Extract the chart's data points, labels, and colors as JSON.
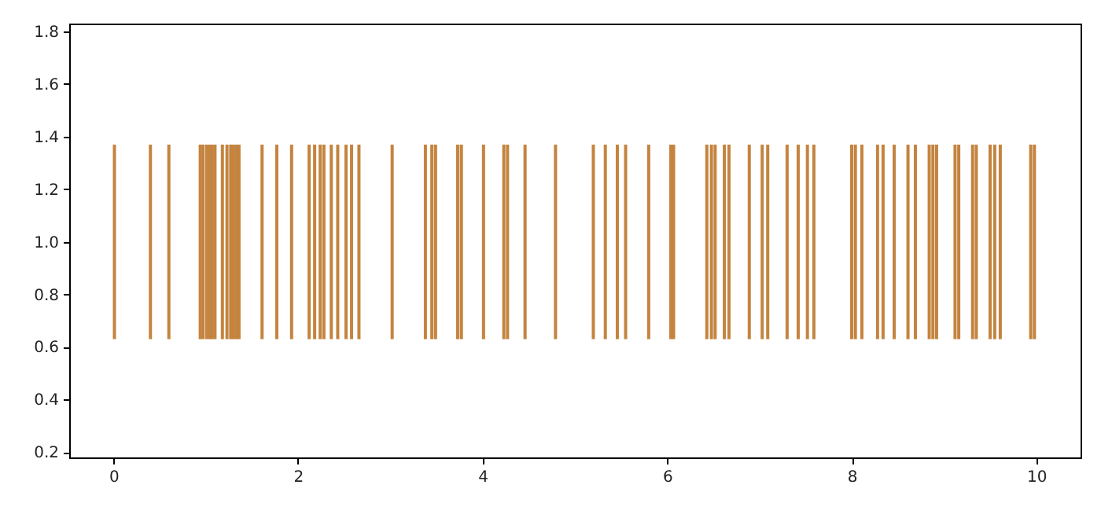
{
  "chart_data": {
    "type": "bar",
    "x": [
      0.01,
      0.4,
      0.6,
      0.94,
      0.97,
      1.01,
      1.04,
      1.07,
      1.1,
      1.18,
      1.23,
      1.27,
      1.3,
      1.33,
      1.36,
      1.61,
      1.77,
      1.93,
      2.12,
      2.18,
      2.24,
      2.28,
      2.36,
      2.43,
      2.52,
      2.58,
      2.66,
      3.02,
      3.38,
      3.45,
      3.49,
      3.73,
      3.77,
      4.01,
      4.23,
      4.27,
      4.46,
      4.79,
      5.2,
      5.33,
      5.46,
      5.55,
      5.8,
      6.04,
      6.07,
      6.43,
      6.48,
      6.52,
      6.62,
      6.67,
      6.89,
      7.03,
      7.09,
      7.3,
      7.42,
      7.52,
      7.59,
      8.0,
      8.04,
      8.11,
      8.28,
      8.34,
      8.46,
      8.61,
      8.69,
      8.84,
      8.88,
      8.92,
      9.12,
      9.16,
      9.31,
      9.35,
      9.5,
      9.55,
      9.61,
      9.94,
      9.98
    ],
    "values": [
      0.74,
      0.74,
      0.74,
      0.74,
      0.74,
      0.74,
      0.74,
      0.74,
      0.74,
      0.74,
      0.74,
      0.74,
      0.74,
      0.74,
      0.74,
      0.74,
      0.74,
      0.74,
      0.74,
      0.74,
      0.74,
      0.74,
      0.74,
      0.74,
      0.74,
      0.74,
      0.74,
      0.74,
      0.74,
      0.74,
      0.74,
      0.74,
      0.74,
      0.74,
      0.74,
      0.74,
      0.74,
      0.74,
      0.74,
      0.74,
      0.74,
      0.74,
      0.74,
      0.74,
      0.74,
      0.74,
      0.74,
      0.74,
      0.74,
      0.74,
      0.74,
      0.74,
      0.74,
      0.74,
      0.74,
      0.74,
      0.74,
      0.74,
      0.74,
      0.74,
      0.74,
      0.74,
      0.74,
      0.74,
      0.74,
      0.74,
      0.74,
      0.74,
      0.74,
      0.74,
      0.74,
      0.74,
      0.74,
      0.74,
      0.74,
      0.74,
      0.74
    ],
    "base": [
      0.63,
      0.63,
      0.63,
      0.63,
      0.63,
      0.63,
      0.63,
      0.63,
      0.63,
      0.63,
      0.63,
      0.63,
      0.63,
      0.63,
      0.63,
      0.63,
      0.63,
      0.63,
      0.63,
      0.63,
      0.63,
      0.63,
      0.63,
      0.63,
      0.63,
      0.63,
      0.63,
      0.63,
      0.63,
      0.63,
      0.63,
      0.63,
      0.63,
      0.63,
      0.63,
      0.63,
      0.63,
      0.63,
      0.63,
      0.63,
      0.63,
      0.63,
      0.63,
      0.63,
      0.63,
      0.63,
      0.63,
      0.63,
      0.63,
      0.63,
      0.63,
      0.63,
      0.63,
      0.63,
      0.63,
      0.63,
      0.63,
      0.63,
      0.63,
      0.63,
      0.63,
      0.63,
      0.63,
      0.63,
      0.63,
      0.63,
      0.63,
      0.63,
      0.63,
      0.63,
      0.63,
      0.63,
      0.63,
      0.63,
      0.63,
      0.63,
      0.63
    ],
    "color": "#c4843f",
    "xlim": [
      -0.48,
      10.48
    ],
    "xticks": [
      0,
      2,
      4,
      6,
      8,
      10
    ],
    "ylim": [
      0.18,
      1.83
    ],
    "yticks": [
      0.2,
      0.4,
      0.6,
      0.8,
      {
        "value": 1,
        "label": "1.0"
      },
      1.2,
      1.4,
      1.6,
      1.8
    ]
  }
}
